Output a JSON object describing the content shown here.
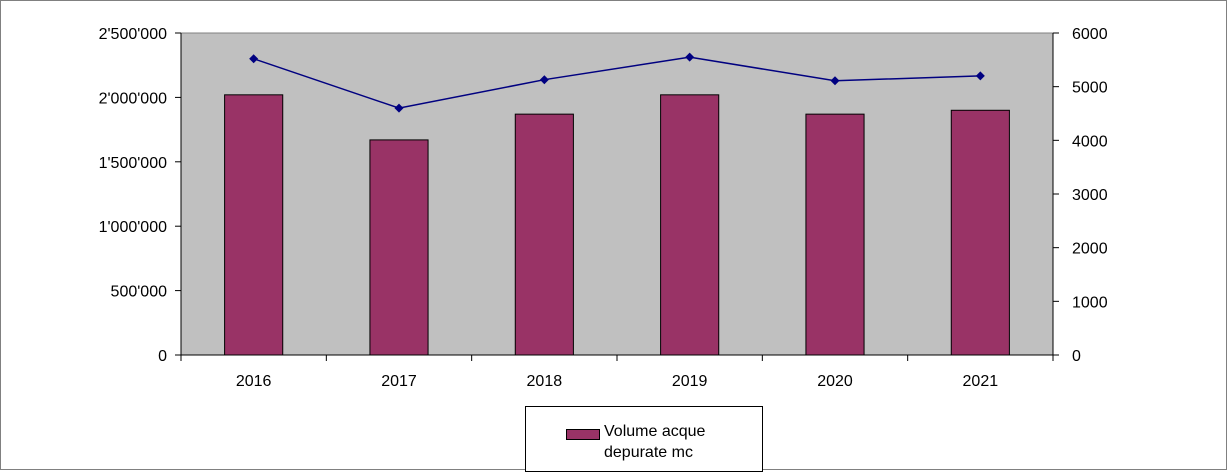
{
  "chart_data": {
    "type": "bar",
    "categories": [
      "2016",
      "2017",
      "2018",
      "2019",
      "2020",
      "2021"
    ],
    "series": [
      {
        "name": "Volume acque depurate mc",
        "type": "bar",
        "axis": "left",
        "values": [
          2020000,
          1670000,
          1870000,
          2020000,
          1870000,
          1900000
        ]
      },
      {
        "type": "line",
        "axis": "right",
        "values": [
          5520,
          4600,
          5130,
          5550,
          5110,
          5200
        ]
      }
    ],
    "y_left": {
      "ylim": [
        0,
        2500000
      ],
      "ticks": [
        0,
        500000,
        1000000,
        1500000,
        2000000,
        2500000
      ],
      "tick_labels": [
        "0",
        "500'000",
        "1'000'000",
        "1'500'000",
        "2'000'000",
        "2'500'000"
      ]
    },
    "y_right": {
      "ylim": [
        0,
        6000
      ],
      "ticks": [
        0,
        1000,
        2000,
        3000,
        4000,
        5000,
        6000
      ],
      "tick_labels": [
        "0",
        "1000",
        "2000",
        "3000",
        "4000",
        "5000",
        "6000"
      ]
    },
    "legend": {
      "position": "bottom",
      "entries": [
        "Volume acque depurate mc"
      ]
    },
    "grid": false,
    "colors": {
      "bar": "#993366",
      "line": "#000080",
      "plot_bg": "#c0c0c0"
    }
  }
}
